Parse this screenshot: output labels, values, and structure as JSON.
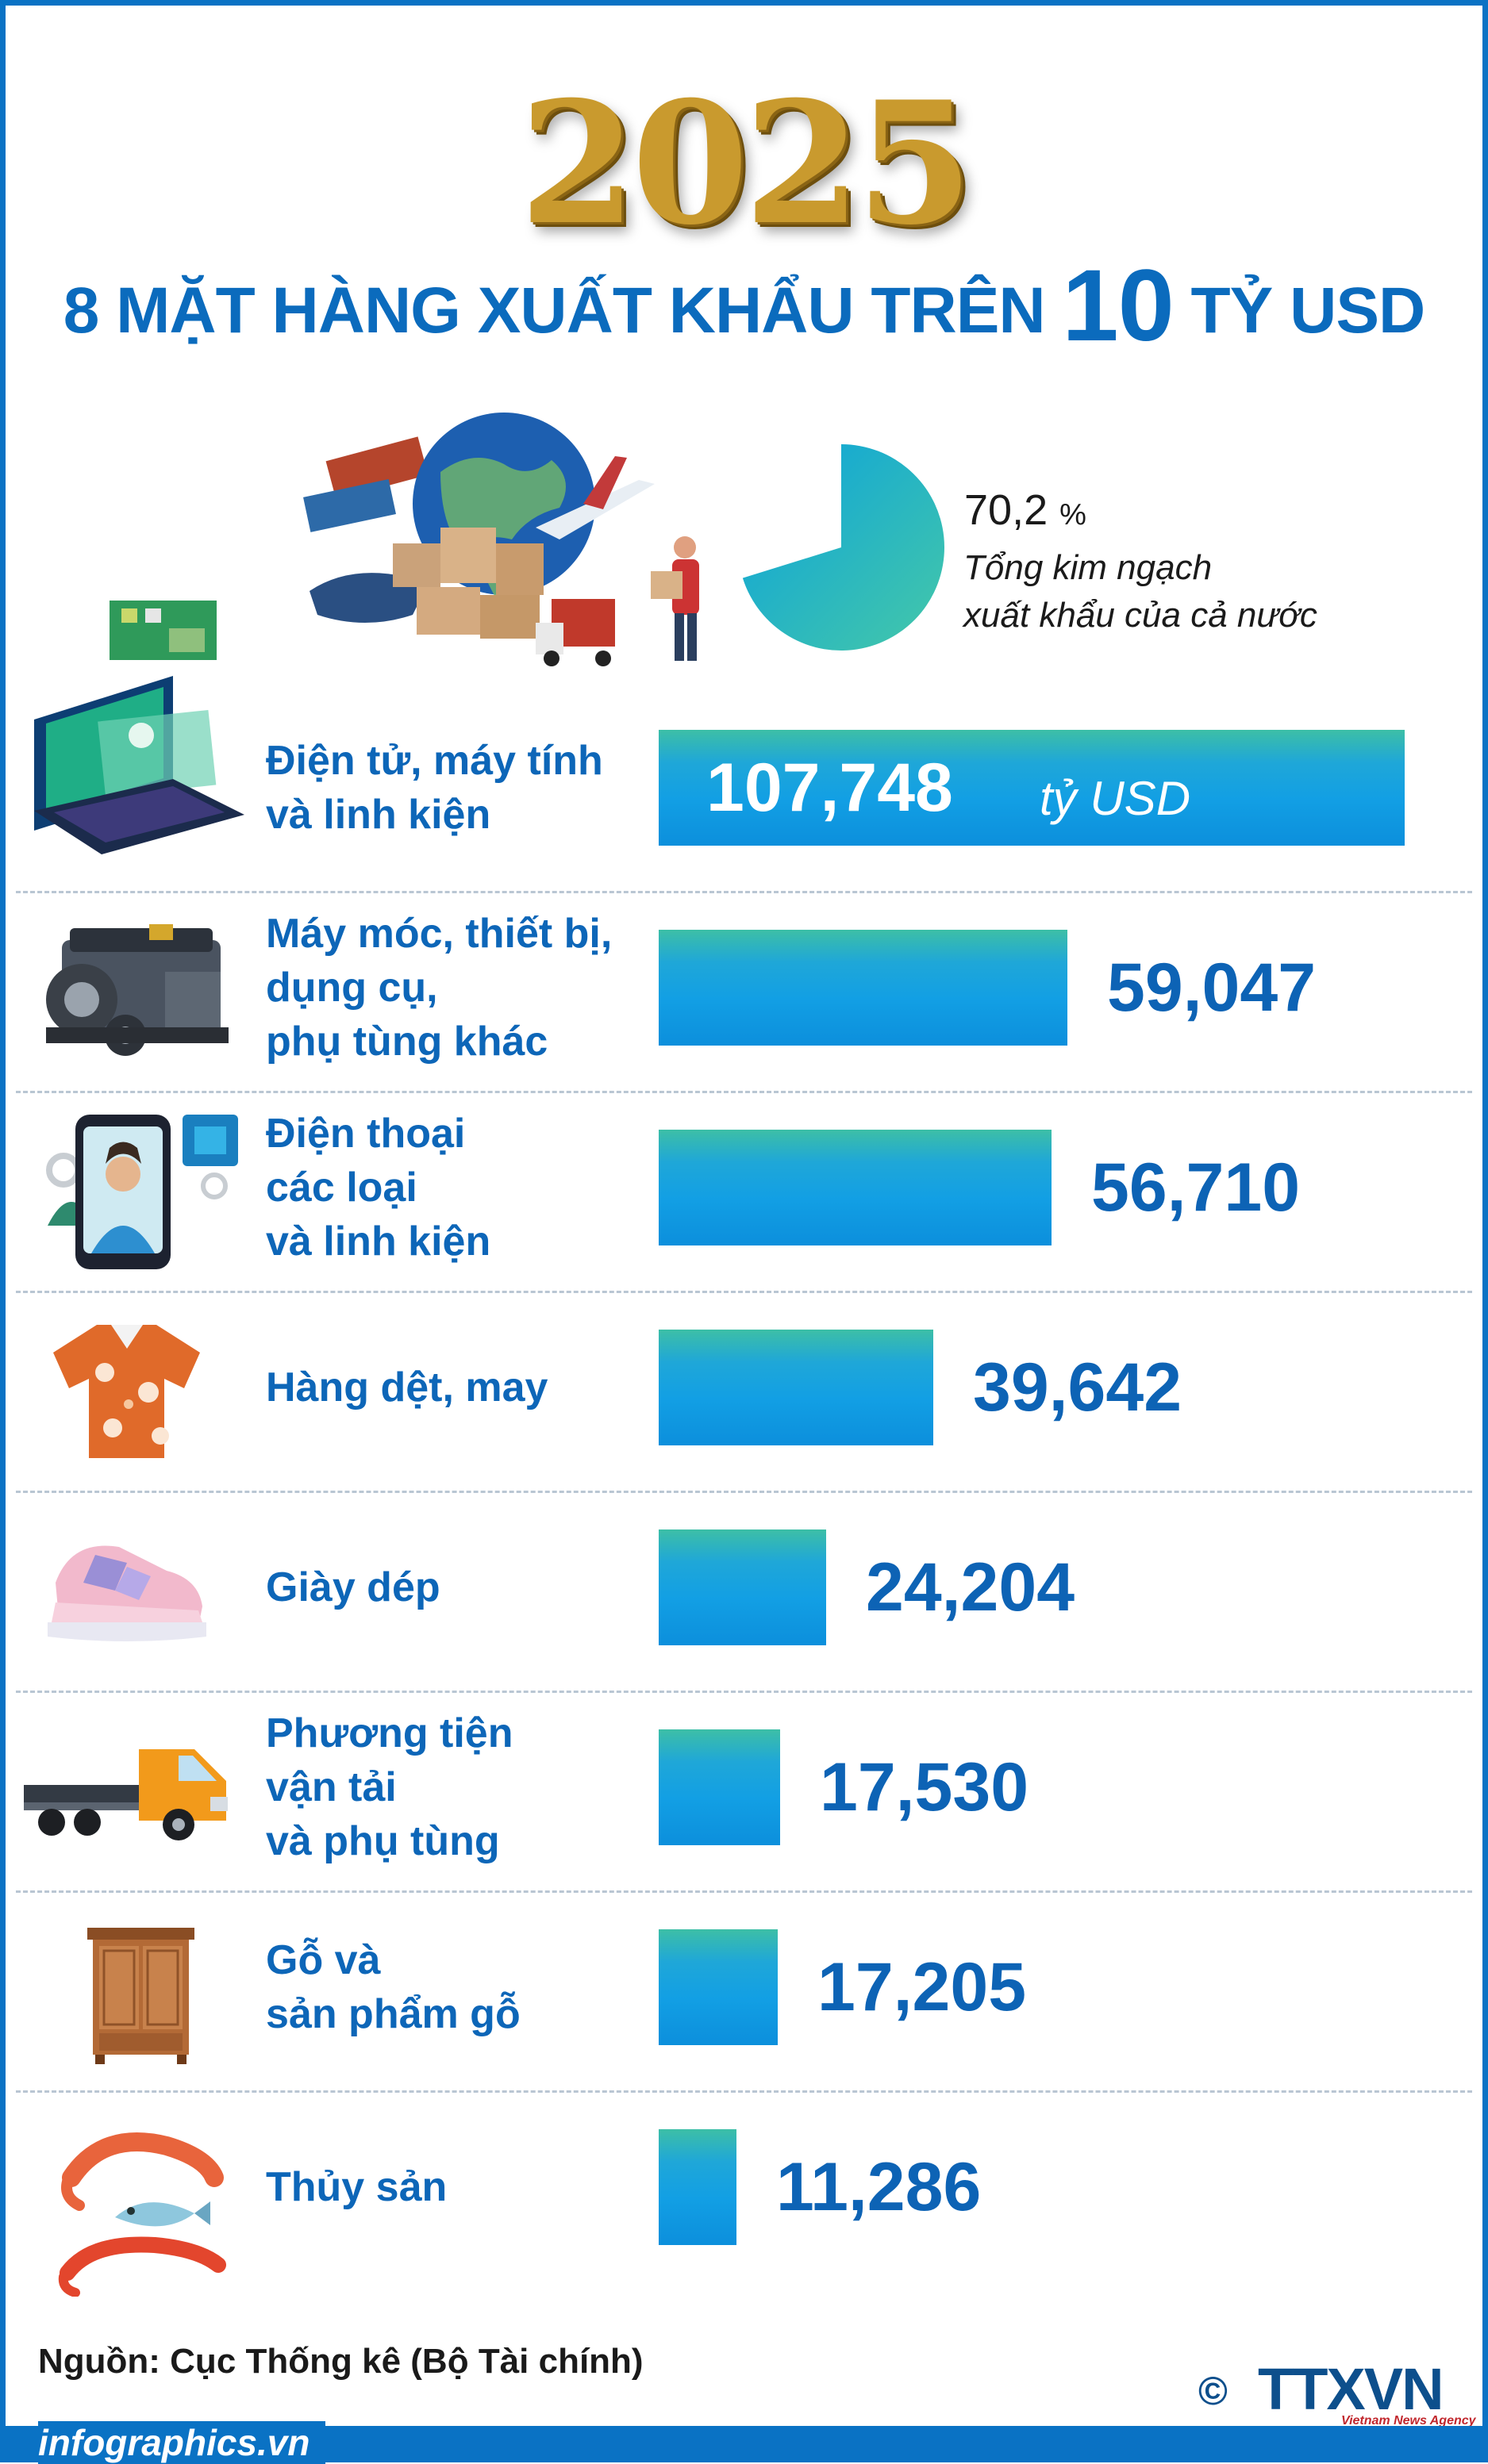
{
  "header": {
    "year": "2025",
    "title_part1": "8 MẶT HÀNG XUẤT KHẨU TRÊN ",
    "title_part2": "10",
    "title_part3": " TỶ USD"
  },
  "share": {
    "value": "70,2",
    "symbol": "%",
    "caption_line1": "Tổng kim ngạch",
    "caption_line2": "xuất khẩu của cả nước",
    "fraction": 0.702
  },
  "chart_data": {
    "type": "bar",
    "orientation": "horizontal",
    "unit": "tỷ USD",
    "categories": [
      "Điện tử, máy tính và linh kiện",
      "Máy móc, thiết bị, dụng cụ, phụ tùng khác",
      "Điện thoại các loại và linh kiện",
      "Hàng dệt, may",
      "Giày dép",
      "Phương tiện vận tải và phụ tùng",
      "Gỗ và sản phẩm gỗ",
      "Thủy sản"
    ],
    "values": [
      107.748,
      59.047,
      56.71,
      39.642,
      24.204,
      17.53,
      17.205,
      11.286
    ],
    "value_labels": [
      "107,748",
      "59,047",
      "56,710",
      "39,642",
      "24,204",
      "17,530",
      "17,205",
      "11,286"
    ],
    "label_lines": [
      [
        "Điện tử, máy tính",
        "và linh kiện"
      ],
      [
        "Máy móc, thiết bị,",
        "dụng cụ,",
        "phụ tùng khác"
      ],
      [
        "Điện thoại",
        "các loại",
        "và linh kiện"
      ],
      [
        "Hàng dệt, may"
      ],
      [
        "Giày dép"
      ],
      [
        "Phương tiện",
        "vận tải",
        "và phụ tùng"
      ],
      [
        "Gỗ và",
        "sản phẩm gỗ"
      ],
      [
        "Thủy sản"
      ]
    ],
    "bar_color": "#129fe4",
    "icons": [
      "laptop-icon",
      "engine-icon",
      "smartphone-icon",
      "shirt-icon",
      "shoe-icon",
      "truck-icon",
      "wardrobe-icon",
      "seafood-icon"
    ]
  },
  "footer": {
    "source": "Nguồn: Cục Thống kê (Bộ Tài chính)",
    "site": "infographics.vn",
    "copyright": "©",
    "logo": "TTXVN",
    "logo_sub": "Vietnam News Agency"
  },
  "colors": {
    "accent": "#0a72c4",
    "title": "#0b6bbd",
    "gold": "#c99a2e"
  }
}
